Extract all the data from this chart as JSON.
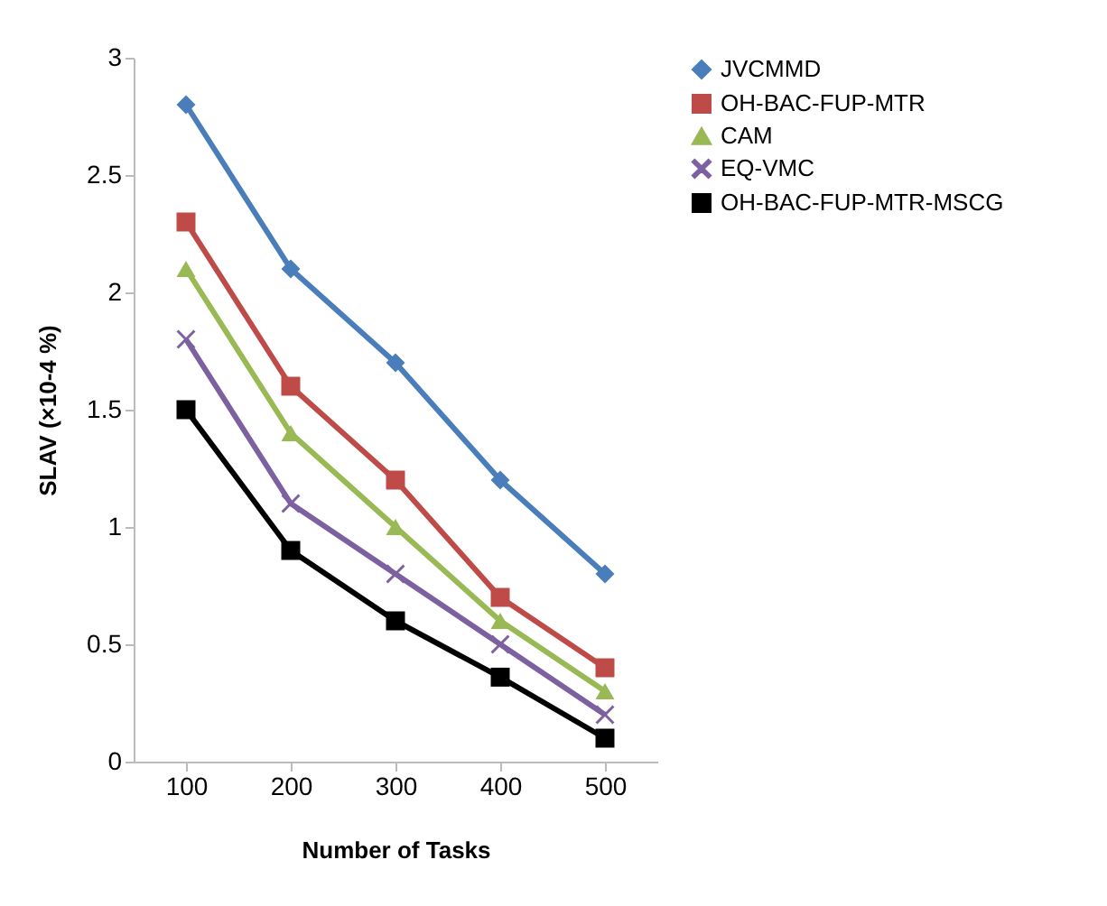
{
  "chart_data": {
    "type": "line",
    "xlabel": "Number of Tasks",
    "ylabel": "SLAV (×10-4 %)",
    "categories": [
      "100",
      "200",
      "300",
      "400",
      "500"
    ],
    "series": [
      {
        "name": "JVCMMD",
        "color": "#4a7ebb",
        "marker": "diamond",
        "values": [
          2.8,
          2.1,
          1.7,
          1.2,
          0.8
        ]
      },
      {
        "name": "OH-BAC-FUP-MTR",
        "color": "#be4b48",
        "marker": "square",
        "values": [
          2.3,
          1.6,
          1.2,
          0.7,
          0.4
        ]
      },
      {
        "name": "CAM",
        "color": "#98b954",
        "marker": "triangle",
        "values": [
          2.1,
          1.4,
          1.0,
          0.6,
          0.3
        ]
      },
      {
        "name": "EQ-VMC",
        "color": "#7d60a0",
        "marker": "cross",
        "values": [
          1.8,
          1.1,
          0.8,
          0.5,
          0.2
        ]
      },
      {
        "name": "OH-BAC-FUP-MTR-MSCG",
        "color": "#000000",
        "marker": "square",
        "values": [
          1.5,
          0.9,
          0.6,
          0.36,
          0.1
        ]
      }
    ],
    "ylim": [
      0,
      3
    ],
    "yticks": [
      0,
      0.5,
      1,
      1.5,
      2,
      2.5,
      3
    ],
    "grid": false,
    "legend": "right",
    "line_style": "solid"
  }
}
